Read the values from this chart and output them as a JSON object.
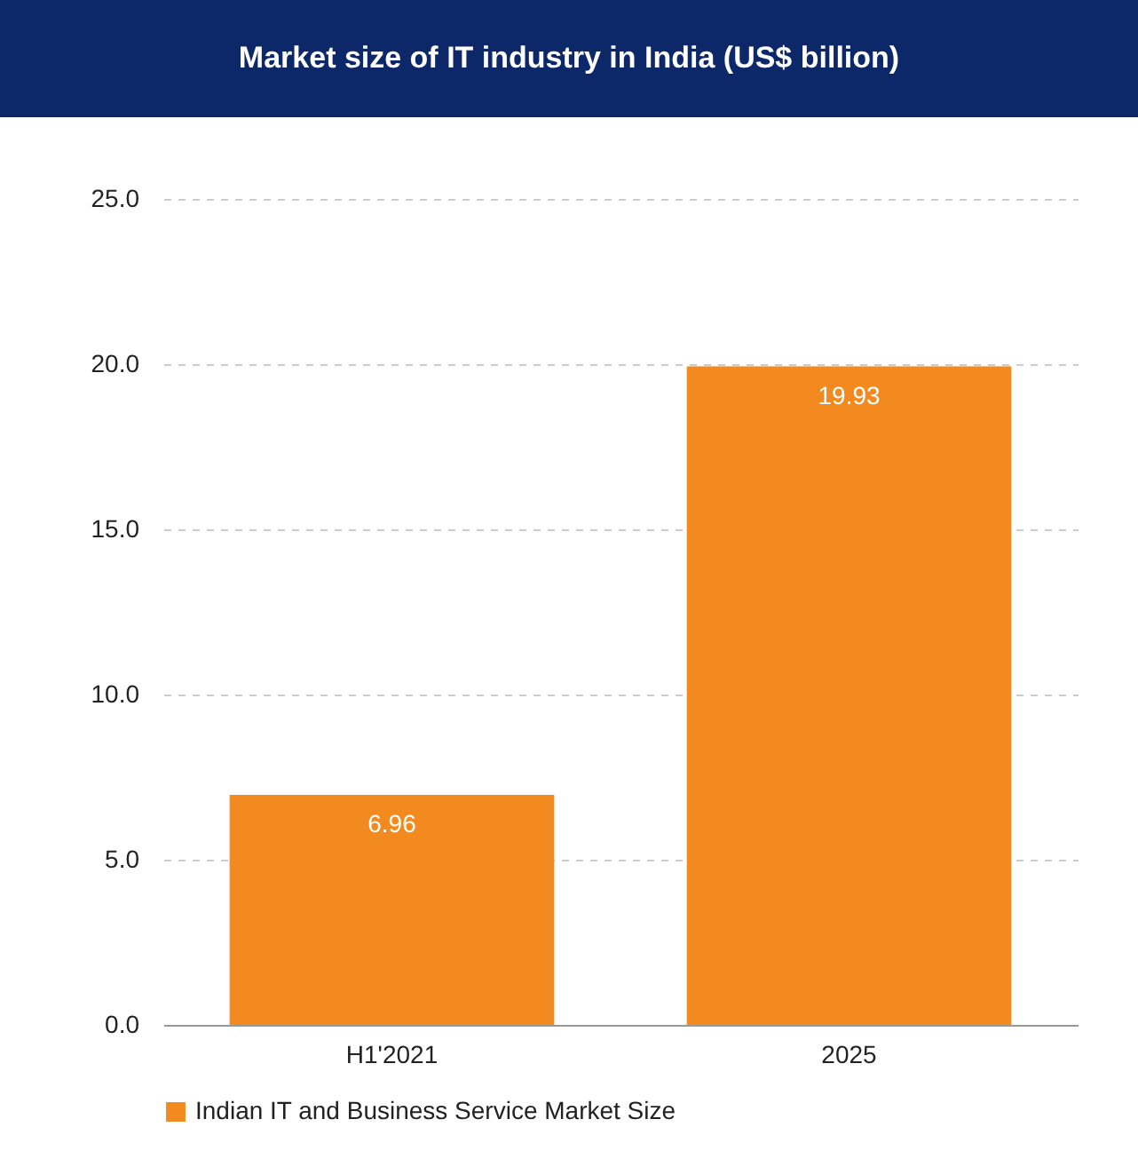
{
  "chart_data": {
    "type": "bar",
    "title": "Market size of IT industry in India (US$ billion)",
    "categories": [
      "H1'2021",
      "2025"
    ],
    "series": [
      {
        "name": "Indian IT and Business Service Market Size",
        "color": "#f28a1f",
        "values": [
          6.96,
          19.93
        ]
      }
    ],
    "ylim": [
      0,
      25
    ],
    "yticks": [
      {
        "value": 0,
        "label": "0.0"
      },
      {
        "value": 5,
        "label": "5.0"
      },
      {
        "value": 10,
        "label": "10.0"
      },
      {
        "value": 15,
        "label": "15.0"
      },
      {
        "value": 20,
        "label": "20.0"
      },
      {
        "value": 25,
        "label": "25.0"
      }
    ],
    "grid": "y",
    "data_labels": true,
    "legend": "bottom"
  }
}
